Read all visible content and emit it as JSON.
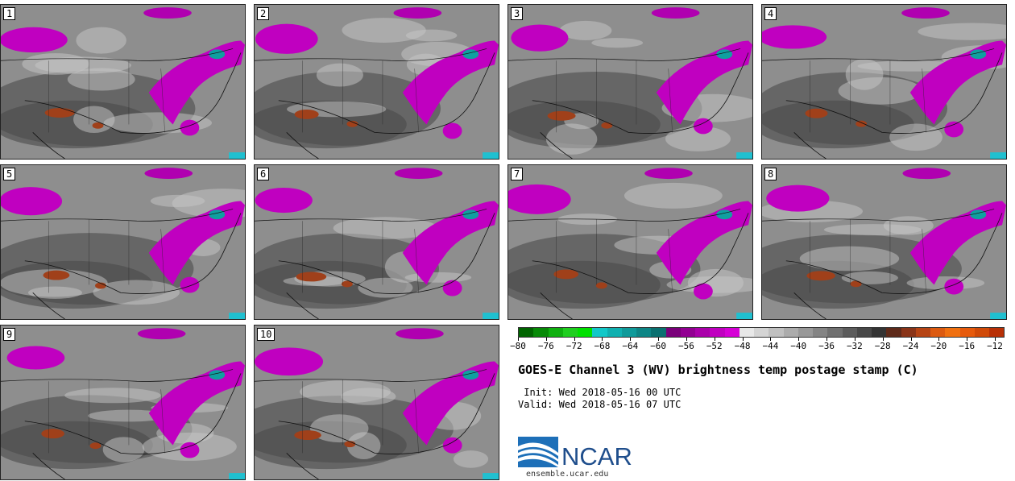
{
  "panels": [
    "1",
    "2",
    "3",
    "4",
    "5",
    "6",
    "7",
    "8",
    "9",
    "10"
  ],
  "colorbar": {
    "colors": [
      "#006400",
      "#078a07",
      "#0fb00f",
      "#1fce1f",
      "#00e000",
      "#12c8c8",
      "#10b0b0",
      "#0f9a9a",
      "#0d8585",
      "#0a7070",
      "#7a007a",
      "#920092",
      "#aa00aa",
      "#c000c0",
      "#d600d6",
      "#e8e8e8",
      "#d4d4d4",
      "#c0c0c0",
      "#acacac",
      "#989898",
      "#848484",
      "#707070",
      "#5c5c5c",
      "#484848",
      "#343434",
      "#5e2a1a",
      "#8a3418",
      "#b64414",
      "#dc5a10",
      "#f07010",
      "#e65a0c",
      "#d04a08",
      "#b83006"
    ],
    "ticks": [
      "−80",
      "−76",
      "−72",
      "−68",
      "−64",
      "−60",
      "−56",
      "−52",
      "−48",
      "−44",
      "−40",
      "−36",
      "−32",
      "−28",
      "−24",
      "−20",
      "−16",
      "−12"
    ]
  },
  "title": "GOES-E Channel 3 (WV) brightness temp postage stamp (C)",
  "init_line": " Init: Wed 2018-05-16 00 UTC",
  "valid_line": "Valid: Wed 2018-05-16 07 UTC",
  "logo_text": "NCAR",
  "site_text": "ensemble.ucar.edu"
}
